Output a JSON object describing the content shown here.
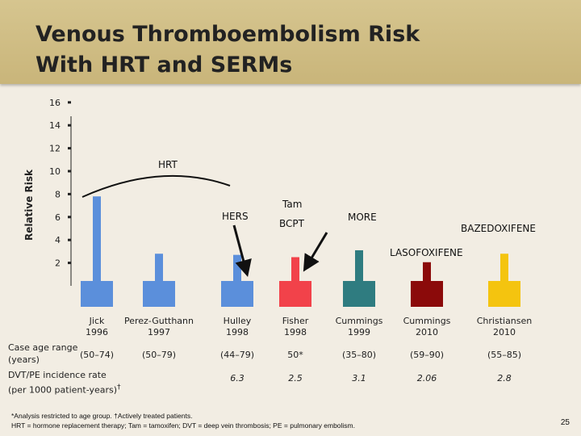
{
  "title": {
    "line1": "Venous Thromboembolism Risk",
    "line2": "With HRT and SERMs"
  },
  "chart_data": {
    "type": "bar",
    "ylabel": "Relative Risk",
    "ylim": [
      0,
      16
    ],
    "yticks": [
      2,
      4,
      6,
      8,
      10,
      12,
      14,
      16
    ],
    "categories": [
      "Jick\n1996",
      "Perez-Gutthann\n1997",
      "Hulley\n1998",
      "Fisher\n1998",
      "Cummings\n1999",
      "Cummings\n2010",
      "Christiansen\n2010"
    ],
    "values": [
      7.8,
      2.8,
      2.7,
      2.5,
      3.1,
      2.06,
      2.8
    ],
    "colors": [
      "#5b8fdb",
      "#5b8fdb",
      "#5b8fdb",
      "#f2424a",
      "#2f7c80",
      "#8b0a0a",
      "#f4c40f"
    ],
    "annotations": {
      "hrt": "HRT",
      "hers": "HERS",
      "tam": "Tam",
      "bcpt": "BCPT",
      "more": "MORE",
      "bazedoxifene": "BAZEDOXIFENE",
      "lasofoxifene": "LASOFOXIFENE"
    }
  },
  "table": {
    "row1_label_l1": "Case age range",
    "row1_label_l2": "(years)",
    "age_ranges": [
      "(50–74)",
      "(50–79)",
      "(44–79)",
      "50*",
      "(35–80)",
      "(59–90)",
      "(55–85)"
    ],
    "row2_label_l1": "DVT/PE incidence rate",
    "row2_label_l2": "(per 1000 patient-years)",
    "row2_dagger": "†",
    "incidence": [
      "",
      "",
      "6.3",
      "2.5",
      "3.1",
      "2.06",
      "2.8"
    ]
  },
  "footnotes": {
    "line1": "*Analysis restricted to age group. †Actively treated patients.",
    "line2": "HRT = hormone replacement therapy; Tam = tamoxifen; DVT = deep vein thrombosis; PE = pulmonary embolism."
  },
  "page_number": "25"
}
